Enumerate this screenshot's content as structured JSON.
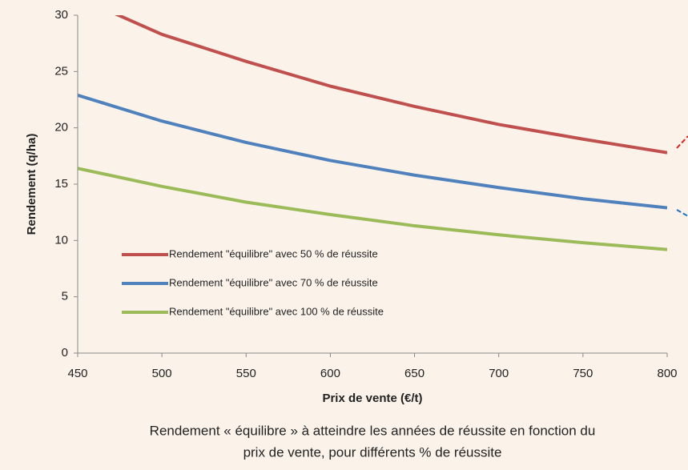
{
  "chart_data": {
    "type": "line",
    "x_label": "Prix de vente (€/t)",
    "y_label": "Rendement (q/ha)",
    "caption": [
      "Rendement « équilibre » à atteindre les années de réussite en fonction du",
      "prix de vente,  pour différents % de réussite"
    ],
    "x": [
      450,
      500,
      550,
      600,
      650,
      700,
      750,
      800
    ],
    "series": [
      {
        "name": "Rendement \"équilibre\" avec 50 % de réussite",
        "color": "#c0504d",
        "values": [
          31.6,
          28.3,
          25.9,
          23.7,
          21.9,
          20.3,
          19.0,
          17.8
        ]
      },
      {
        "name": "Rendement \"équilibre\" avec 70 % de réussite",
        "color": "#4f81bd",
        "values": [
          22.9,
          20.6,
          18.7,
          17.1,
          15.8,
          14.7,
          13.7,
          12.9
        ]
      },
      {
        "name": "Rendement \"équilibre\" avec 100 % de réussite",
        "color": "#9bbb59",
        "values": [
          16.4,
          14.8,
          13.4,
          12.3,
          11.3,
          10.5,
          9.8,
          9.2
        ]
      }
    ],
    "xlim": [
      450,
      800
    ],
    "xticks": [
      450,
      500,
      550,
      600,
      650,
      700,
      750,
      800
    ],
    "ylim": [
      0,
      30
    ],
    "yticks": [
      0,
      5,
      10,
      15,
      20,
      25,
      30
    ]
  }
}
